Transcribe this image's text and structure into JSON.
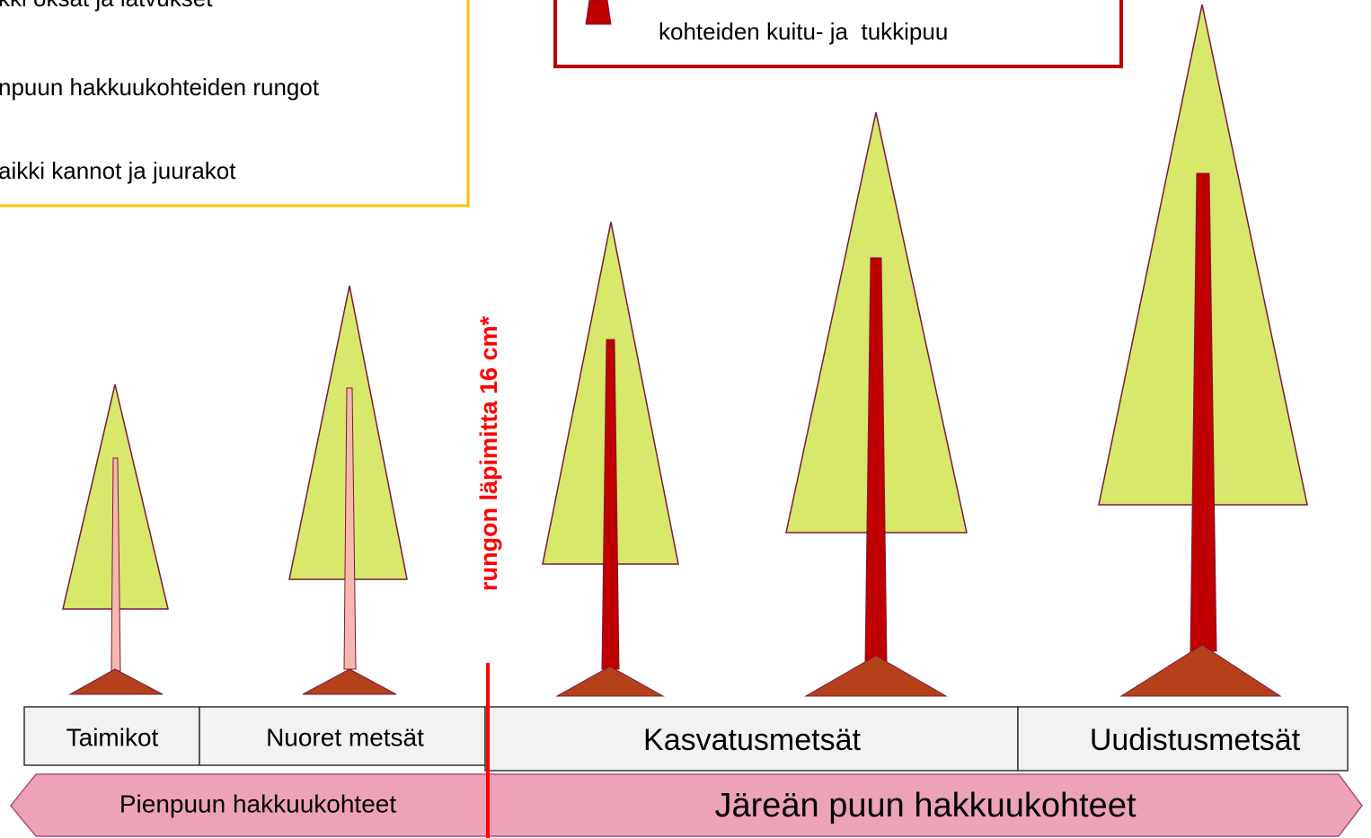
{
  "legend_left": {
    "lines": [
      "kki oksat ja latvukset",
      "npuun hakkuukohteiden rungot",
      "aikki kannot ja juurakot"
    ]
  },
  "legend_top": {
    "lines": [
      "kohteiden kuitu- ja  tukkipuu"
    ]
  },
  "threshold_label": "rungon läpimitta 16 cm*",
  "stands": [
    "Taimikot",
    "Nuoret metsät",
    "Kasvatusmetsät",
    "Uudistusmetsät"
  ],
  "cut_types": [
    "Pienpuun hakkuukohteet",
    "Järeän puun hakkuukohteet"
  ]
}
